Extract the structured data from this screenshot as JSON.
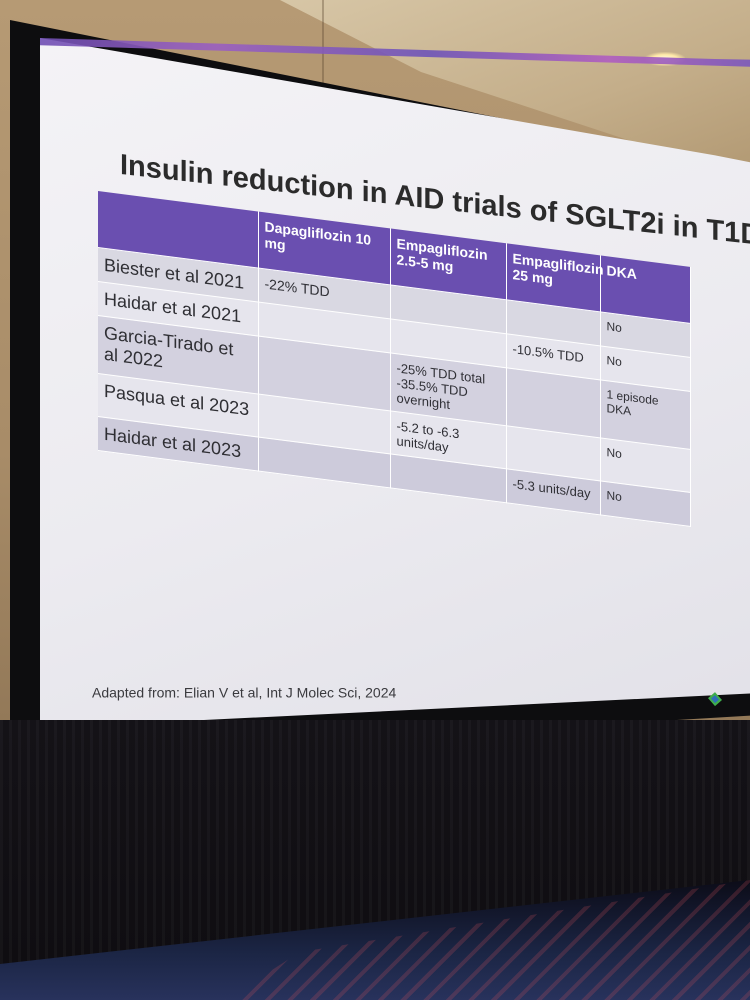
{
  "slide": {
    "title": "Insulin reduction in AID trials of SGLT2i in T1D",
    "columns": [
      "",
      "Dapagliflozin 10 mg",
      "Empagliflozin 2.5-5 mg",
      "Empagliflozin 25 mg",
      "DKA"
    ],
    "rows": [
      {
        "study": "Biester et al 2021",
        "dapa10": "-22% TDD",
        "empa25_5": "",
        "empa25": "",
        "dka": "No"
      },
      {
        "study": "Haidar et al 2021",
        "dapa10": "",
        "empa25_5": "",
        "empa25": "-10.5% TDD",
        "dka": "No"
      },
      {
        "study": "Garcia-Tirado et al 2022",
        "dapa10": "",
        "empa25_5": "-25% TDD total -35.5% TDD overnight",
        "empa25": "",
        "dka": "1 episode DKA"
      },
      {
        "study": "Pasqua et al 2023",
        "dapa10": "",
        "empa25_5": "-5.2 to -6.3 units/day",
        "empa25": "",
        "dka": "No"
      },
      {
        "study": "Haidar et al 2023",
        "dapa10": "",
        "empa25_5": "",
        "empa25": "-5.3 units/day",
        "dka": "No"
      }
    ],
    "source": "Adapted from: Elian V et al, Int J Molec Sci, 2024"
  },
  "colors": {
    "header_purple": "#6a4fb0",
    "row_lavender": "#d9d8e2",
    "logo_green": "#3fae4c",
    "logo_blue": "#2e6fb8"
  },
  "icons": [
    "presenter-logo-icon"
  ]
}
